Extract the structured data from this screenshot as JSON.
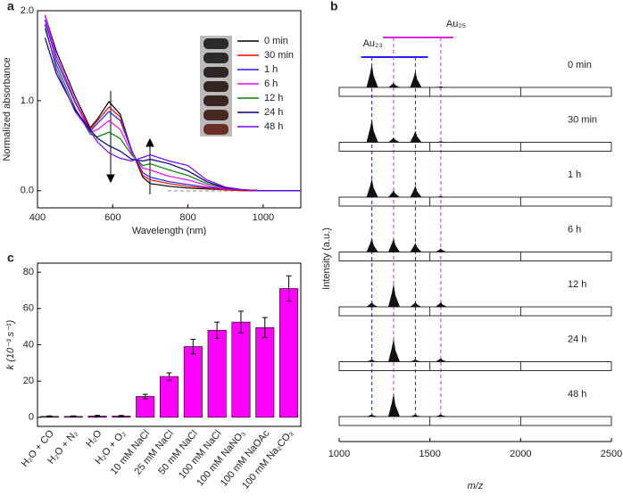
{
  "chart_data": [
    {
      "type": "line",
      "panel": "a",
      "xlabel": "Wavelength (nm)",
      "ylabel": "Normalized absorbance",
      "x": [
        420,
        450,
        500,
        540,
        560,
        590,
        620,
        650,
        680,
        700,
        750,
        800,
        850,
        900,
        950,
        1000,
        1100
      ],
      "xlim": [
        400,
        1100
      ],
      "xticks": [
        400,
        600,
        800,
        1000
      ],
      "ylim": [
        -0.19,
        2.0
      ],
      "yticks": [
        {
          "value": 0,
          "label": "0.0"
        },
        {
          "value": 1,
          "label": "1.0"
        },
        {
          "value": 2,
          "label": "2.0"
        }
      ],
      "series": [
        {
          "name": "0 min",
          "color": "#000000",
          "values": [
            1.95,
            1.55,
            1.05,
            0.7,
            0.8,
            0.99,
            0.85,
            0.45,
            0.15,
            0.08,
            0.05,
            0.03,
            0.02,
            0.01,
            0.0,
            0.0,
            0.0
          ]
        },
        {
          "name": "30 min",
          "color": "#ff0000",
          "values": [
            1.95,
            1.5,
            1.0,
            0.68,
            0.78,
            0.93,
            0.82,
            0.45,
            0.17,
            0.12,
            0.08,
            0.05,
            0.03,
            0.01,
            0.0,
            0.0,
            0.0
          ]
        },
        {
          "name": "1 h",
          "color": "#2020ff",
          "values": [
            1.9,
            1.45,
            0.98,
            0.66,
            0.75,
            0.88,
            0.78,
            0.45,
            0.2,
            0.15,
            0.1,
            0.07,
            0.04,
            0.02,
            0.01,
            0.0,
            0.0
          ]
        },
        {
          "name": "6 h",
          "color": "#ff00ff",
          "values": [
            1.95,
            1.5,
            1.0,
            0.65,
            0.68,
            0.78,
            0.68,
            0.42,
            0.25,
            0.23,
            0.16,
            0.12,
            0.06,
            0.02,
            0.01,
            0.0,
            0.0
          ]
        },
        {
          "name": "12 h",
          "color": "#008000",
          "values": [
            1.8,
            1.4,
            0.92,
            0.63,
            0.6,
            0.65,
            0.58,
            0.4,
            0.28,
            0.3,
            0.23,
            0.17,
            0.08,
            0.03,
            0.01,
            0.0,
            0.0
          ]
        },
        {
          "name": "24 h",
          "color": "#000080",
          "values": [
            1.7,
            1.3,
            0.9,
            0.68,
            0.58,
            0.5,
            0.44,
            0.35,
            0.33,
            0.35,
            0.3,
            0.22,
            0.1,
            0.03,
            0.01,
            0.0,
            0.0
          ]
        },
        {
          "name": "48 h",
          "color": "#8000ff",
          "values": [
            1.85,
            1.35,
            0.88,
            0.66,
            0.54,
            0.42,
            0.36,
            0.33,
            0.37,
            0.4,
            0.33,
            0.28,
            0.12,
            0.04,
            0.01,
            0.0,
            0.0
          ]
        }
      ]
    },
    {
      "type": "spectrum",
      "panel": "b",
      "xlabel": "m/z",
      "ylabel": "Intensity (a.u.)",
      "xlim": [
        1000,
        2500
      ],
      "xticks": [
        1000,
        1500,
        2000,
        2500
      ],
      "x": [
        1180,
        1300,
        1420,
        1560
      ],
      "annotations": [
        {
          "text": "Au₂₃",
          "color": "#2020ff"
        },
        {
          "text": "Au₂₅",
          "color": "#e020e0"
        }
      ],
      "legend_color": "#e020e0",
      "series": [
        {
          "name": "0 min",
          "values": [
            1.0,
            0.2,
            0.7,
            0.05
          ]
        },
        {
          "name": "30 min",
          "values": [
            1.0,
            0.2,
            0.5,
            0.05
          ]
        },
        {
          "name": "1 h",
          "values": [
            0.8,
            0.3,
            0.5,
            0.05
          ]
        },
        {
          "name": "6 h",
          "values": [
            0.6,
            0.6,
            0.4,
            0.15
          ]
        },
        {
          "name": "12 h",
          "values": [
            0.2,
            1.0,
            0.2,
            0.2
          ]
        },
        {
          "name": "24 h",
          "values": [
            0.1,
            1.0,
            0.1,
            0.15
          ]
        },
        {
          "name": "48 h",
          "values": [
            0.1,
            1.0,
            0.1,
            0.1
          ]
        }
      ]
    },
    {
      "type": "bar",
      "panel": "c",
      "ylabel": "k (10⁻³ s⁻¹)",
      "color": "#ff00ff",
      "categories": [
        "H₂O + CO",
        "H₂O + N₂",
        "H₂O",
        "H₂O + O₂",
        "10 mM NaCl",
        "25 mM NaCl",
        "50 mM NaCl",
        "100 mM NaCl",
        "100 mM NaNO₃",
        "100 mM NaOAc",
        "100 mM Na₂CO₃"
      ],
      "values": [
        0.5,
        0.5,
        0.7,
        0.7,
        11.5,
        22.5,
        39,
        48,
        52.5,
        49.5,
        71
      ],
      "errors": [
        0.3,
        0.3,
        0.4,
        0.3,
        1.2,
        2,
        4,
        4.5,
        6,
        5.5,
        7
      ],
      "ylim": [
        -5,
        85
      ],
      "yticks": [
        0,
        20,
        40,
        60,
        80
      ]
    }
  ]
}
